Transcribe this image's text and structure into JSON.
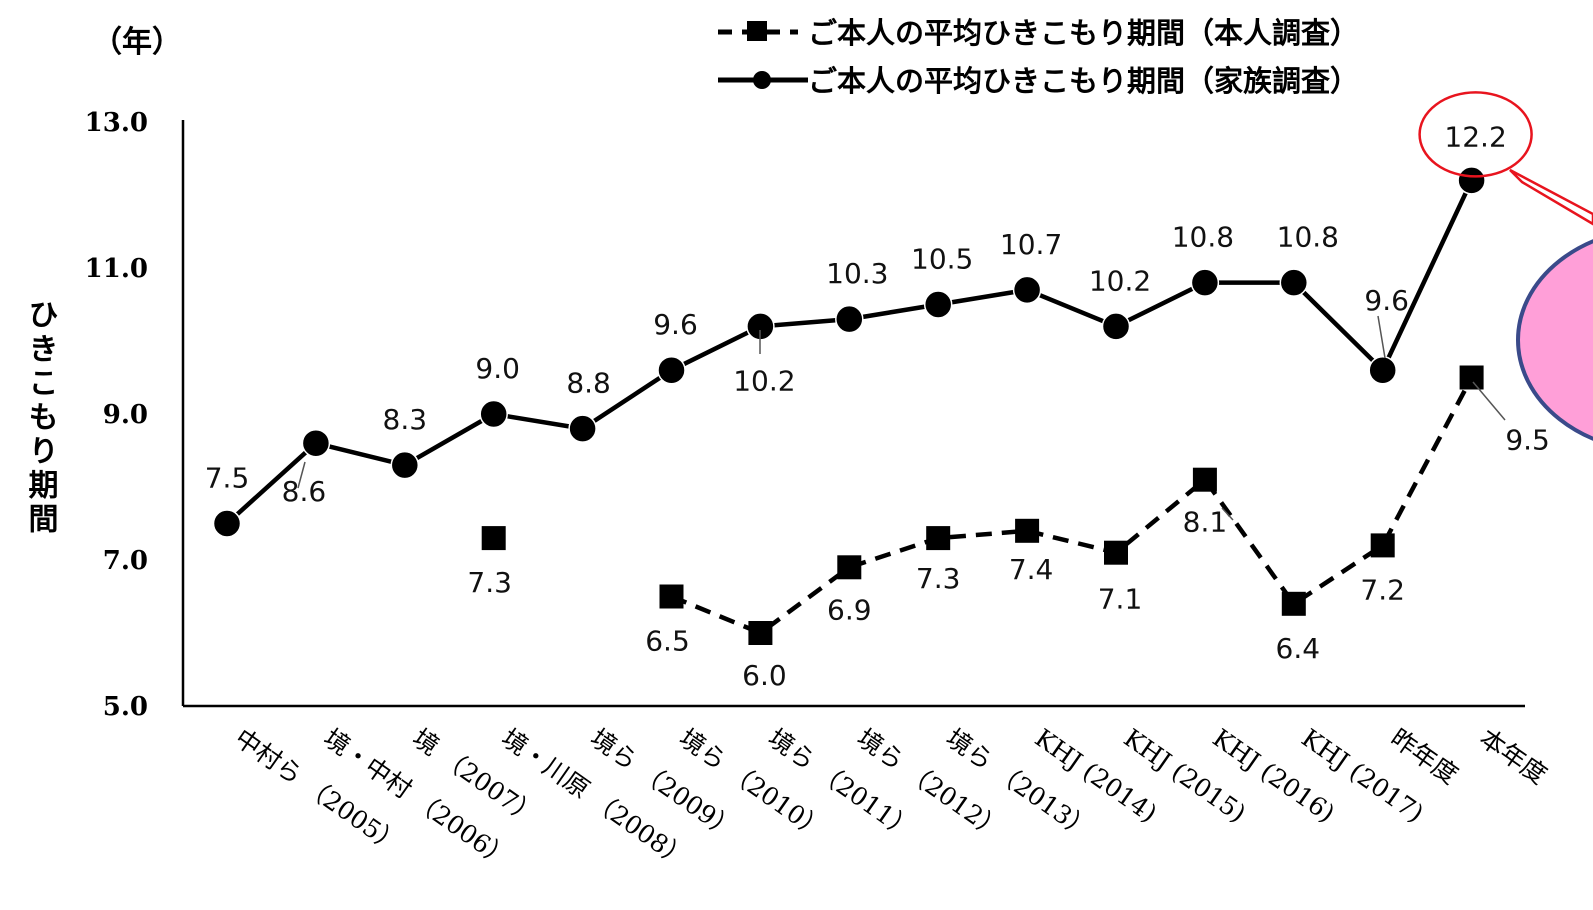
{
  "chart_data": {
    "type": "line",
    "unit_label": "（年）",
    "ylabel": "ひきこもり期間",
    "ylim": [
      5.0,
      13.0
    ],
    "yticks": [
      "5.0",
      "7.0",
      "9.0",
      "11.0",
      "13.0"
    ],
    "categories": [
      "中村ら （2005）",
      "境・中村 （2006）",
      "境 （2007）",
      "境・川原 （2008）",
      "境ら （2009）",
      "境ら （2010）",
      "境ら （2011）",
      "境ら （2012）",
      "境ら （2013）",
      "KHJ (2014)",
      "KHJ (2015)",
      "KHJ (2016)",
      "KHJ (2017)",
      "昨年度",
      "本年度"
    ],
    "series": [
      {
        "name": "ご本人の平均ひきこもり期間（本人調査）",
        "style": "dashed-square",
        "color": "#000000",
        "values": [
          null,
          null,
          null,
          7.3,
          null,
          6.5,
          6.0,
          6.9,
          7.3,
          7.4,
          7.1,
          8.1,
          6.4,
          7.2,
          9.5
        ],
        "labels": [
          "",
          "",
          "",
          "7.3",
          "",
          "6.5",
          "6.0",
          "6.9",
          "7.3",
          "7.4",
          "7.1",
          "8.1",
          "6.4",
          "7.2",
          "9.5"
        ]
      },
      {
        "name": "ご本人の平均ひきこもり期間（家族調査）",
        "style": "solid-circle",
        "color": "#000000",
        "values": [
          7.5,
          8.6,
          8.3,
          9.0,
          8.8,
          9.6,
          10.2,
          10.3,
          10.5,
          10.7,
          10.2,
          10.8,
          10.8,
          9.6,
          12.2
        ],
        "labels": [
          "7.5",
          "8.6",
          "8.3",
          "9.0",
          "8.8",
          "9.6",
          "10.2",
          "10.3",
          "10.5",
          "10.7",
          "10.2",
          "10.8",
          "10.8",
          "9.6",
          "12.2"
        ]
      }
    ],
    "highlight": {
      "ring_color": "#e8141e",
      "bubble_fill": "#ff9fd8",
      "bubble_stroke": "#3a4a8a"
    }
  }
}
